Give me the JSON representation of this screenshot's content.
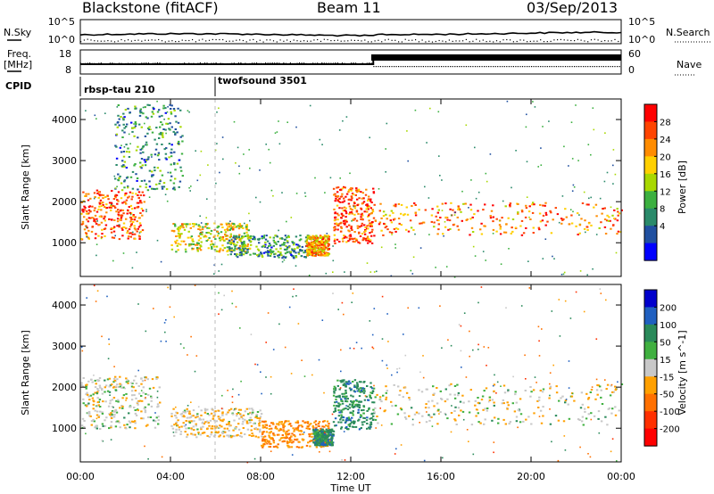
{
  "header": {
    "radar": "Blackstone (fitACF)",
    "beam": "Beam 11",
    "date": "03/Sep/2013"
  },
  "noise_panel": {
    "left_label": "N.Sky",
    "right_label": "N.Search",
    "left_ticks": [
      "10^5",
      "10^0"
    ],
    "right_ticks": [
      "10^5",
      "10^0"
    ]
  },
  "freq_panel": {
    "left_label_line1": "Freq.",
    "left_label_line2": "[MHz]",
    "right_label": "Nave",
    "left_ticks": [
      "18",
      "8"
    ],
    "right_ticks": [
      "60",
      "0"
    ],
    "cpid_label": "CPID"
  },
  "cpid": [
    {
      "name": "rbsp-tau 210",
      "start_hour": 0
    },
    {
      "name": "twofsound 3501",
      "start_hour": 6
    }
  ],
  "chart_data": [
    {
      "type": "heatmap",
      "name": "power",
      "ylabel": "Slant Range [km]",
      "ylim": [
        180,
        4500
      ],
      "yticks": [
        1000,
        2000,
        3000,
        4000
      ],
      "xlim": [
        0,
        24
      ],
      "xticks": [
        "00:00",
        "04:00",
        "08:00",
        "12:00",
        "16:00",
        "20:00",
        "00:00"
      ],
      "colorbar": {
        "label": "Power [dB]",
        "ticks": [
          "28",
          "24",
          "20",
          "16",
          "12",
          "8",
          "4"
        ],
        "colors": [
          "#ff0000",
          "#ff4400",
          "#ff8c00",
          "#ffd000",
          "#a8d800",
          "#3cb040",
          "#2a8a6a",
          "#2050a0",
          "#0000ff"
        ]
      },
      "echo_regions": [
        {
          "t": [
            0.0,
            2.8
          ],
          "r": [
            1100,
            2300
          ],
          "value": 24
        },
        {
          "t": [
            1.5,
            4.5
          ],
          "r": [
            2300,
            4400
          ],
          "value": 8
        },
        {
          "t": [
            4.0,
            7.5
          ],
          "r": [
            800,
            1500
          ],
          "value": 16
        },
        {
          "t": [
            6.5,
            10.5
          ],
          "r": [
            650,
            1200
          ],
          "value": 8
        },
        {
          "t": [
            10.0,
            11.0
          ],
          "r": [
            700,
            1200
          ],
          "value": 20
        },
        {
          "t": [
            11.2,
            13.0
          ],
          "r": [
            1000,
            2400
          ],
          "value": 24
        },
        {
          "t": [
            13.0,
            24.0
          ],
          "r": [
            1200,
            2000
          ],
          "value": 22
        }
      ]
    },
    {
      "type": "heatmap",
      "name": "velocity",
      "ylabel": "Slant Range [km]",
      "ylim": [
        180,
        4500
      ],
      "yticks": [
        1000,
        2000,
        3000,
        4000
      ],
      "xlim": [
        0,
        24
      ],
      "xticks": [
        "00:00",
        "04:00",
        "08:00",
        "12:00",
        "16:00",
        "20:00",
        "00:00"
      ],
      "xlabel": "Time UT",
      "colorbar": {
        "label": "Velocity [m s^-1]",
        "ticks": [
          "200",
          "100",
          "50",
          "15",
          "-15",
          "-50",
          "-100",
          "-200"
        ],
        "colors": [
          "#0000cc",
          "#2060c0",
          "#2a8a5a",
          "#40b040",
          "#c8c8c8",
          "#ffa000",
          "#ff7000",
          "#ff3000",
          "#ff0000"
        ]
      },
      "echo_regions": [
        {
          "t": [
            0.0,
            3.5
          ],
          "r": [
            1000,
            2300
          ],
          "value": 0
        },
        {
          "t": [
            4.0,
            8.0
          ],
          "r": [
            800,
            1500
          ],
          "value": -15
        },
        {
          "t": [
            8.0,
            11.0
          ],
          "r": [
            550,
            1200
          ],
          "value": -50
        },
        {
          "t": [
            10.3,
            11.2
          ],
          "r": [
            600,
            1000
          ],
          "value": 50
        },
        {
          "t": [
            11.2,
            13.0
          ],
          "r": [
            1000,
            2200
          ],
          "value": 50
        },
        {
          "t": [
            13.0,
            24.0
          ],
          "r": [
            1100,
            2100
          ],
          "value": 0
        }
      ]
    }
  ]
}
